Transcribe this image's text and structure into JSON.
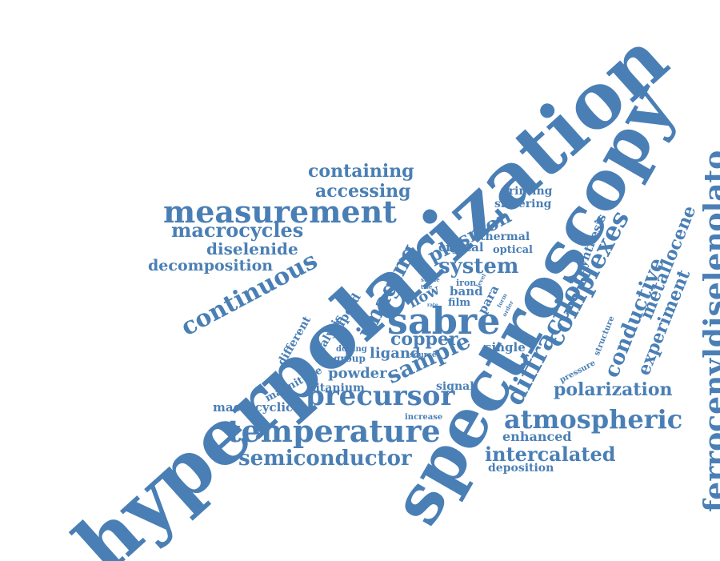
{
  "cloud": {
    "color": "#4a7fb5",
    "words": [
      "hyperpolarization",
      "spectroscopy",
      "ferrocenyldiselenolato",
      "measurement",
      "temperature",
      "precursor",
      "atmospheric",
      "sabre",
      "continuous",
      "macrocycles",
      "containing",
      "accessing",
      "semiconductor",
      "diffraction",
      "complexes",
      "conductive",
      "experiment",
      "metallocene",
      "polarization",
      "intercalated",
      "diselenide",
      "decomposition",
      "sample",
      "imaging",
      "plasmon",
      "system",
      "copper",
      "powder",
      "ligand",
      "printing",
      "sintering",
      "thermal",
      "crystal",
      "optical",
      "synthesis",
      "enhanced",
      "deposition",
      "macrocyclic",
      "titanium",
      "magnitude",
      "different",
      "analysis",
      "lpcvd",
      "flow",
      "band",
      "iron",
      "film",
      "para",
      "stable",
      "tise",
      "level",
      "rate",
      "form",
      "order",
      "doping",
      "group",
      "source",
      "single",
      "signal",
      "increase",
      "pressure",
      "structure"
    ]
  }
}
